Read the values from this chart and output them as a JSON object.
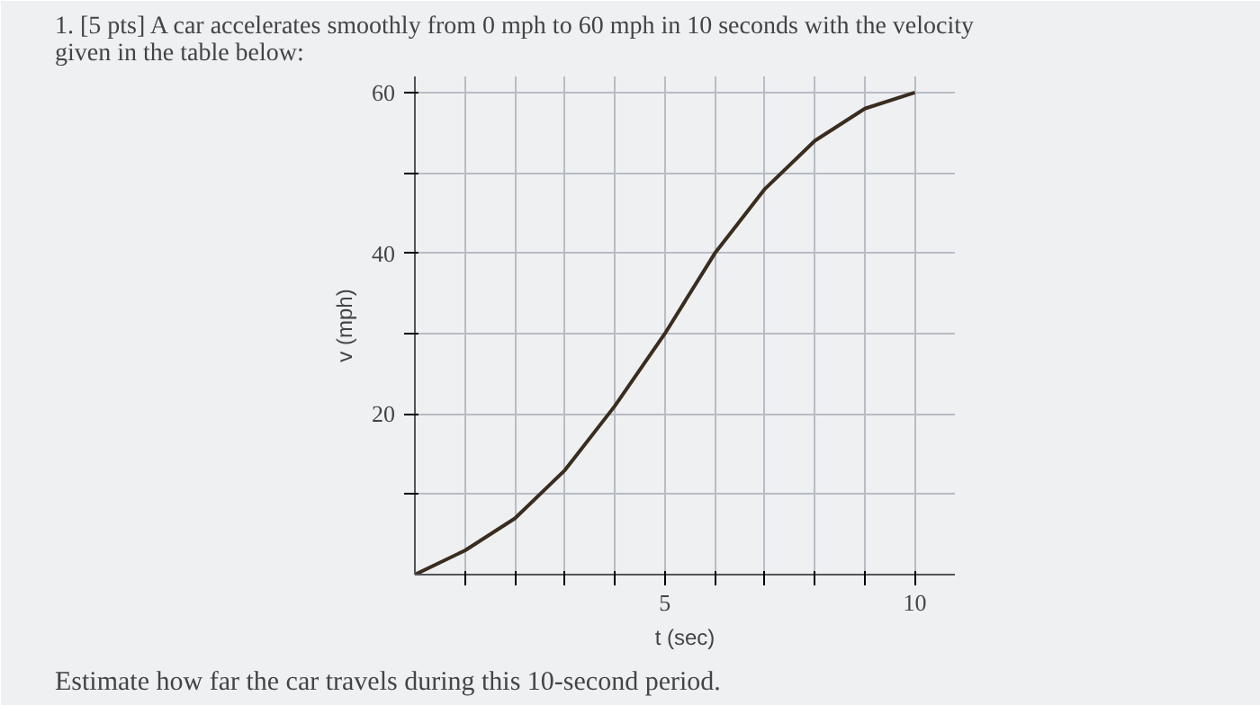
{
  "chart_data": {
    "type": "line",
    "title": "1. [5 pts] A car accelerates smoothly from 0 mph to 60 mph in 10 seconds with the velocity given in the table below:",
    "xlabel": "t (sec)",
    "ylabel": "v (mph)",
    "x": [
      0,
      1,
      2,
      3,
      4,
      5,
      6,
      7,
      8,
      9,
      10
    ],
    "series": [
      {
        "color": "#3a2c1e",
        "values": [
          0,
          3,
          7,
          13,
          21,
          30,
          40,
          48,
          54,
          58,
          60
        ]
      }
    ],
    "xlim": [
      0,
      10.8
    ],
    "ylim": [
      0,
      62
    ],
    "xticks": [
      {
        "value": 1,
        "label": null
      },
      {
        "value": 2,
        "label": null
      },
      {
        "value": 3,
        "label": null
      },
      {
        "value": 4,
        "label": null
      },
      5,
      {
        "value": 6,
        "label": null
      },
      {
        "value": 7,
        "label": null
      },
      {
        "value": 8,
        "label": null
      },
      {
        "value": 9,
        "label": null
      },
      10
    ],
    "yticks": [
      {
        "value": 10,
        "label": null
      },
      20,
      {
        "value": 30,
        "label": null
      },
      40,
      {
        "value": 50,
        "label": null
      },
      60
    ],
    "grid": true,
    "marker": "none",
    "line_style": "solid",
    "annotations": [
      "Estimate how far the car travels during this 10-second period."
    ]
  }
}
